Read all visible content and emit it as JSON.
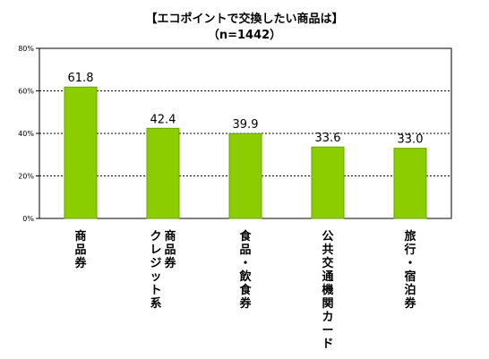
{
  "chart_data": {
    "type": "bar",
    "title": "【エコポイントで交換したい商品は】",
    "subtitle": "（n=1442）",
    "categories": [
      "商品券",
      "クレジット系商品券",
      "食品・飲食券",
      "公共交通機関カード",
      "旅行・宿泊券"
    ],
    "category_columns": [
      [
        "商品券"
      ],
      [
        "クレジット系",
        "商品券"
      ],
      [
        "食品・飲食券"
      ],
      [
        "公共交通機関カード"
      ],
      [
        "旅行・宿泊券"
      ]
    ],
    "values": [
      61.8,
      42.4,
      39.9,
      33.6,
      33.0
    ],
    "data_labels": [
      "61.8",
      "42.4",
      "39.9",
      "33.6",
      "33.0"
    ],
    "ylim": [
      0,
      80
    ],
    "yticks": [
      0,
      20,
      40,
      60,
      80
    ],
    "ytick_labels": [
      "0%",
      "20%",
      "40%",
      "60%",
      "80%"
    ],
    "xlabel": "",
    "ylabel": "",
    "grid": "dotted horizontal",
    "bar_color": "#8ccd00",
    "bar_stroke": "#6aa300"
  }
}
